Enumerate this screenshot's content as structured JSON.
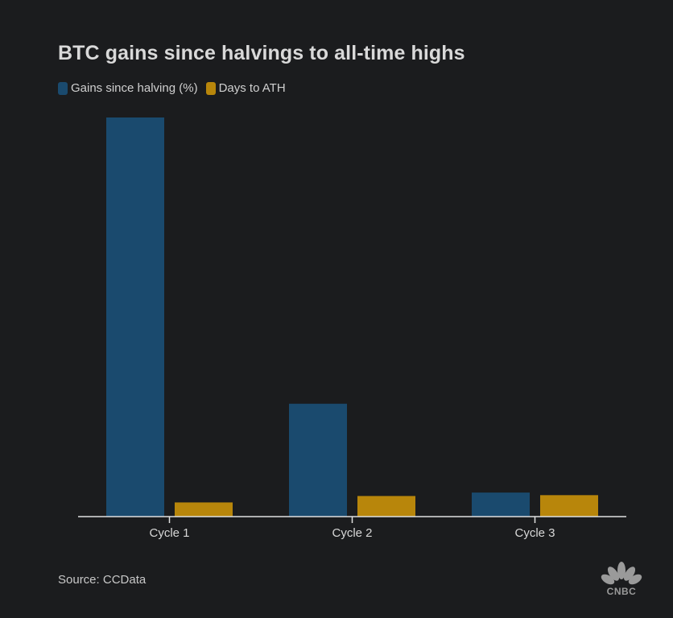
{
  "chart_data": {
    "type": "bar",
    "title": "BTC gains since halvings to all-time highs",
    "categories": [
      "Cycle 1",
      "Cycle 2",
      "Cycle 3"
    ],
    "series": [
      {
        "name": "Gains since halving (%)",
        "color": "#1a4a6e",
        "values": [
          9300,
          2630,
          560
        ]
      },
      {
        "name": "Days to ATH",
        "color": "#b8860b",
        "values": [
          330,
          480,
          500
        ]
      }
    ],
    "xlabel": "",
    "ylabel": "",
    "ylim": [
      0,
      9300
    ],
    "grid": false,
    "legend": "top-left"
  },
  "source": "Source: CCData",
  "logo": {
    "icon": "peacock-icon",
    "text": "CNBC"
  }
}
